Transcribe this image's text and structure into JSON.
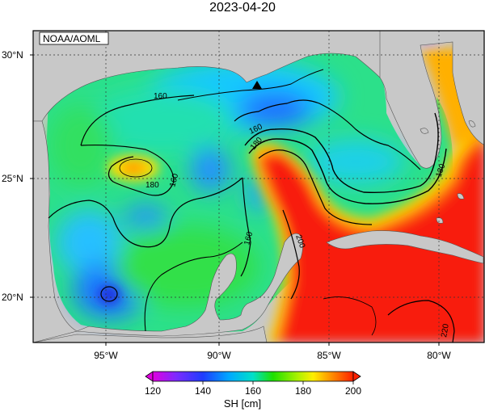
{
  "title": "2023-04-20",
  "credit": "NOAA/AOML",
  "colorbar": {
    "label": "SH [cm]",
    "ticks": [
      "120",
      "140",
      "160",
      "180",
      "200"
    ]
  },
  "map": {
    "lat_labels": [
      "30°N",
      "25°N",
      "20°N"
    ],
    "lon_labels": [
      "95°W",
      "90°W",
      "85°W",
      "80°W"
    ],
    "contour_labels": [
      "160",
      "160",
      "160",
      "160",
      "180",
      "180",
      "180",
      "200",
      "220"
    ]
  }
}
